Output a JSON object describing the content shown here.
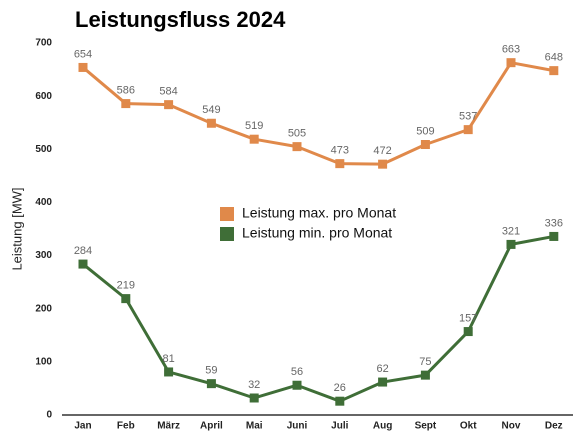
{
  "chart_data": {
    "type": "line",
    "title": "Leistungsfluss 2024",
    "y_label": "Leistung [MW]",
    "categories": [
      "Jan",
      "Feb",
      "März",
      "April",
      "Mai",
      "Juni",
      "Juli",
      "Aug",
      "Sept",
      "Okt",
      "Nov",
      "Dez"
    ],
    "series": [
      {
        "name": "Leistung max. pro Monat",
        "color": "#e0894a",
        "values": [
          654,
          586,
          584,
          549,
          519,
          505,
          473,
          472,
          509,
          537,
          663,
          648
        ]
      },
      {
        "name": "Leistung min. pro Monat",
        "color": "#3f6e37",
        "values": [
          284,
          219,
          81,
          59,
          32,
          56,
          26,
          62,
          75,
          157,
          321,
          336
        ]
      }
    ],
    "ylim": [
      0,
      700
    ],
    "yticks": [
      0,
      100,
      200,
      300,
      400,
      500,
      600,
      700
    ],
    "grid": false,
    "legend": "center"
  }
}
